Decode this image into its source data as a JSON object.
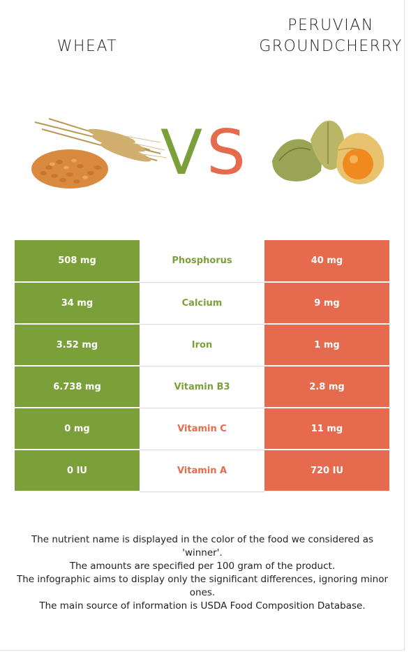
{
  "left_food": {
    "name": "WHEAT"
  },
  "right_food": {
    "name_lines": [
      "PERUVIAN",
      "GROUNDCHERRY"
    ]
  },
  "vs": {
    "v": "V",
    "s": "S"
  },
  "colors": {
    "left": "#7ba03a",
    "right": "#e56a4e"
  },
  "rows": [
    {
      "nutrient": "Phosphorus",
      "left": "508 mg",
      "right": "40 mg",
      "winner": "left"
    },
    {
      "nutrient": "Calcium",
      "left": "34 mg",
      "right": "9 mg",
      "winner": "left"
    },
    {
      "nutrient": "Iron",
      "left": "3.52 mg",
      "right": "1 mg",
      "winner": "left"
    },
    {
      "nutrient": "Vitamin B3",
      "left": "6.738 mg",
      "right": "2.8 mg",
      "winner": "left"
    },
    {
      "nutrient": "Vitamin C",
      "left": "0 mg",
      "right": "11 mg",
      "winner": "right"
    },
    {
      "nutrient": "Vitamin A",
      "left": "0 IU",
      "right": "720 IU",
      "winner": "right"
    }
  ],
  "notes": [
    "The nutrient name is displayed in the color of the food we considered as 'winner'.",
    "The amounts are specified per 100 gram of the product.",
    "The infographic aims to display only the significant differences, ignoring minor ones.",
    "The main source of information is USDA Food Composition Database."
  ]
}
